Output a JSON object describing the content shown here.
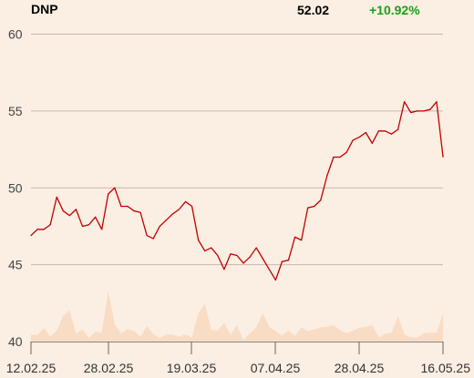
{
  "header": {
    "ticker": "DNP",
    "price": "52.02",
    "change": "+10.92%"
  },
  "colors": {
    "background": "#fbeee2",
    "price_line": "#c00000",
    "volume_area": "#f8dcc4",
    "gridline": "#c8b8aa",
    "change_positive": "#1aa01a"
  },
  "chart_data": {
    "type": "line",
    "title": "",
    "xlabel": "",
    "ylabel": "",
    "ylim": [
      40,
      60
    ],
    "yticks": [
      "40",
      "45",
      "50",
      "55",
      "60"
    ],
    "xticks": [
      "12.02.25",
      "28.02.25",
      "19.03.25",
      "07.04.25",
      "28.04.25",
      "16.05.25"
    ],
    "grid": true,
    "series": [
      {
        "kind": "price",
        "values": [
          46.9,
          47.3,
          47.3,
          47.6,
          49.4,
          48.5,
          48.2,
          48.6,
          47.5,
          47.6,
          48.1,
          47.3,
          49.6,
          50.0,
          48.8,
          48.8,
          48.5,
          48.4,
          46.9,
          46.7,
          47.5,
          47.9,
          48.3,
          48.6,
          49.1,
          48.8,
          46.6,
          45.9,
          46.1,
          45.6,
          44.7,
          45.7,
          45.6,
          45.1,
          45.5,
          46.1,
          45.4,
          44.7,
          44.0,
          45.2,
          45.3,
          46.8,
          46.6,
          48.7,
          48.8,
          49.2,
          50.8,
          52.0,
          52.0,
          52.3,
          53.1,
          53.3,
          53.6,
          52.9,
          53.7,
          53.7,
          53.5,
          53.8,
          55.6,
          54.9,
          55.0,
          55.0,
          55.1,
          55.6,
          52.02
        ]
      },
      {
        "kind": "volume",
        "values": [
          0.12,
          0.12,
          0.25,
          0.09,
          0.2,
          0.47,
          0.57,
          0.14,
          0.22,
          0.06,
          0.18,
          0.16,
          0.92,
          0.31,
          0.15,
          0.23,
          0.19,
          0.09,
          0.28,
          0.14,
          0.06,
          0.13,
          0.13,
          0.09,
          0.13,
          0.07,
          0.52,
          0.69,
          0.21,
          0.2,
          0.34,
          0.12,
          0.3,
          0.03,
          0.15,
          0.26,
          0.52,
          0.27,
          0.19,
          0.11,
          0.2,
          0.1,
          0.26,
          0.19,
          0.22,
          0.26,
          0.27,
          0.3,
          0.21,
          0.15,
          0.2,
          0.25,
          0.27,
          0.3,
          0.08,
          0.14,
          0.16,
          0.46,
          0.13,
          0.08,
          0.07,
          0.15,
          0.16,
          0.16,
          0.51
        ]
      }
    ]
  }
}
